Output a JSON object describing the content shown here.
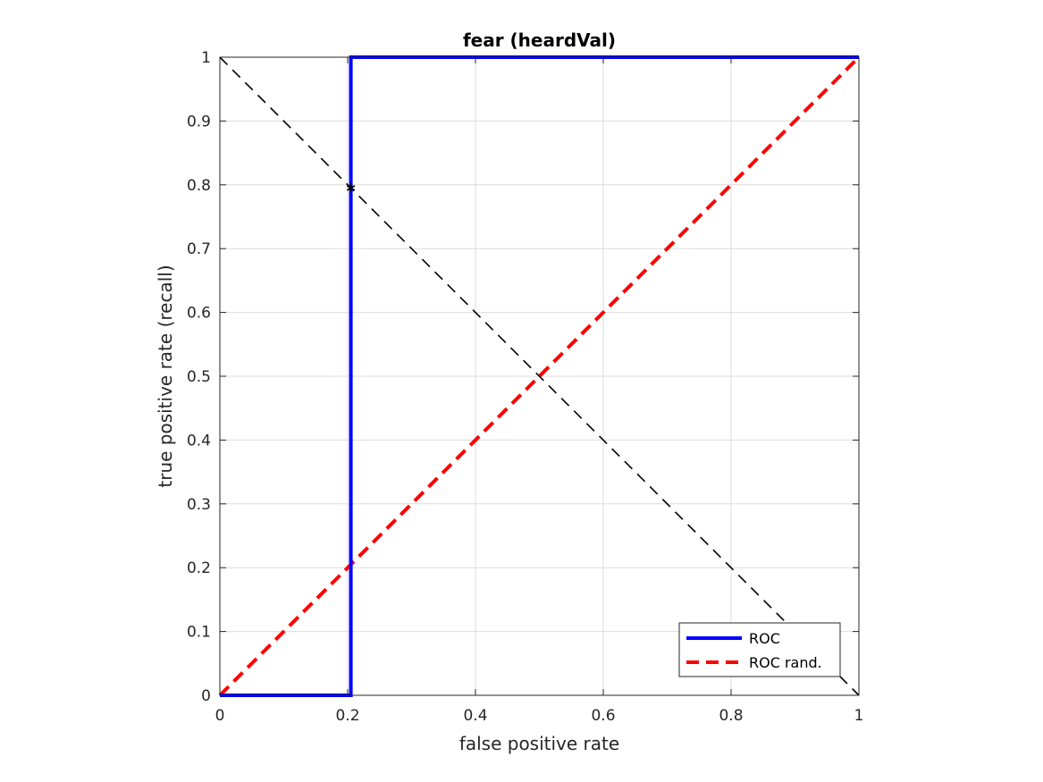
{
  "chart_data": {
    "type": "line",
    "title": "fear (heardVal)",
    "xlabel": "false positive rate",
    "ylabel": "true positive rate (recall)",
    "xlim": [
      0,
      1
    ],
    "ylim": [
      0,
      1
    ],
    "xticks": [
      0,
      0.2,
      0.4,
      0.6,
      0.8,
      1
    ],
    "xtick_labels": [
      "0",
      "0.2",
      "0.4",
      "0.6",
      "0.8",
      "1"
    ],
    "yticks": [
      0,
      0.1,
      0.2,
      0.3,
      0.4,
      0.5,
      0.6,
      0.7,
      0.8,
      0.9,
      1
    ],
    "ytick_labels": [
      "0",
      "0.1",
      "0.2",
      "0.3",
      "0.4",
      "0.5",
      "0.6",
      "0.7",
      "0.8",
      "0.9",
      "1"
    ],
    "grid": true,
    "legend_position": "bottom-right",
    "series": [
      {
        "name": "ROC",
        "color": "#0000ff",
        "style": "solid",
        "x": [
          0,
          0.205,
          0.205,
          1
        ],
        "y": [
          0,
          0,
          1,
          1
        ]
      },
      {
        "name": "ROC rand.",
        "color": "#ff0000",
        "style": "dashed",
        "x": [
          0,
          1
        ],
        "y": [
          0,
          1
        ]
      }
    ],
    "reference_lines": [
      {
        "color": "#000000",
        "style": "dashed",
        "x": [
          0,
          1
        ],
        "y": [
          1,
          0
        ]
      }
    ],
    "markers": [
      {
        "x": 0.205,
        "y": 0.795,
        "symbol": "*",
        "color": "#000000"
      }
    ]
  }
}
